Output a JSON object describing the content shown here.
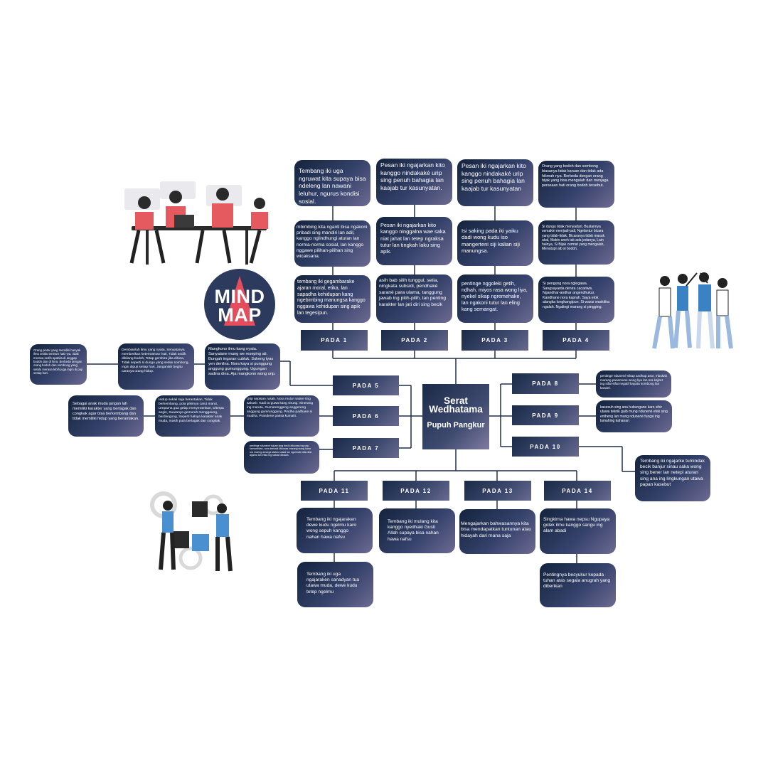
{
  "logo": {
    "line1": "MIND",
    "line2": "MAP"
  },
  "center": {
    "title": "Serat Wedhatama",
    "subtitle": "Pupuh Pangkur"
  },
  "pada": [
    "PADA 1",
    "PADA 2",
    "PADA 3",
    "PADA 4",
    "PADA 5",
    "PADA 6",
    "PADA 7",
    "PADA 8",
    "PADA 9",
    "PADA 10",
    "PADA 11",
    "PADA 12",
    "PADA 13",
    "PADA 14"
  ],
  "col1": [
    "Tembang iki uga ngruwat kita supaya bisa ndeleng lan nawani leluhur, ngurus kondisi sosial.",
    "mbimbing kita nganti bisa ngakoni pribadi sing mandiri lan adil, kanggo nglindhungi aturan lan norma-norma sosial, lan kanggo nggawe pilihan-pilihan sing wicaksana.",
    "tembang iki gegambarake ajaran moral, etika, lan sapadha kehidupan kang ngebimbing manungsa kanggo nggawa kehidupan sing apik lan tegesipun."
  ],
  "col2": [
    "Pesan iki ngajarkan kito kanggo nindakaké urip sing penuh bahagia lan kaajab tur kasunyatan.",
    "Pesan iki ngajarkan kito kanggo ninggalna wae saka niat jahat lan tetep ngraksa tutur lan tingkah laku sing apik.",
    "asih bab silih tunggul, setia, ningkata subsidi, pendhaké saranè para ulama, tanggung jawab ing pilih-pilih, lan penting karakter lan jati diri sing becik"
  ],
  "col3": [
    "Pesan iki ngajarkan kito kanggo nindakaké urip sing penuh bahagia lan kaajab tur kasunyatan",
    "Isi saking pada iki yaiku dadi wong kudu iso mangerteni siji kalian siji manungsa.",
    "pentinge nggoleki getih, ndhah, miyos rasa wong liya, nyekel sikap ngremehake, lan ngakoni tutur lan eling kang semangat."
  ],
  "col4": [
    "Orang yang bodoh dan sombong biasanya tidak karuan dan tidak ada hikmah nya. Berbeda dengan orang bijak yang bisa mengalah dan menjaga perasaan hati orang bodoh tersebut.",
    "Si dungu tidak menyadari, Bualannya semakin menjadi-jadi, Ngelantur bicara yang tidak-tidak, Bicaranya tidak masuk akal, Makin aneh tak ada jedanya, Lain halnya, Si Bijak cermat yang mengalah, Menutupi aib si bodoh.",
    "Si pengung nora nglegawa. Sangsayarda denira cacariwis. Ngandhar-andhar angendhukur. Kandhane nora kaprah. Saya elok alangka longkangipun. Si wasis waskitha ngalah. Ngalingi marang si pingging."
  ],
  "left": {
    "r5a": "Orang pintar yang memiliki banyak ilmu selalu tentram hati nya, tidak merasa sedih apabila di anggap bodoh dan di hina. Berbeda dengan orang bodoh dan sombong yang selalu merasa lebih juga ingin di puji setiap hari.",
    "r5b": "Dembianlah ilmu yang nyata, Senyatanya memberikan ketentraman hati, Tidak sedih dibilang bodoh, Tetap gembira jika dihina, Tidak seperti si dungu yang selalu sombong, Ingin dipuji setiap hari, Janganlah begitu caranya orang hidup.",
    "r5c": "Mangkono ilmu kang nyata. Sanyatane mung we reseping ati. Bungah ingaran cubluk. Sukeng tyas yen denilna. Nora kaya si punggung anggung gumunggung. Ugungan sadina dina. Aja mangkono wong urip.",
    "r6a": "Sebagai anak muda jangan lah memiliki karakter yang berlagak dan congkak agar bisa berkembang dan tidak memiliki hidup yang berantakan.",
    "r6b": "Hidup sekali saja berantakan, Tidak berkembang, pola pikirnya carut marut, Umpama goa gelap menyeramkan, Diterpa angin, Suaranya gemuruh menggaung, berdengung, Seperti halnya karakter anak muda, masih pula berlagak dan congkak.",
    "r6c": "Urip sepisan rusak. Nora mulur nalare ting saluwir. Kadi ta guwa kang sirung. Sinerang ing maruta. Gumarenggeng anggereng anggung gumrunggung. Pindha padhane si mudha. Prandene paksa kumaki.",
    "r7": "pentinge ndunené tujuan sing becik dikuwas ing urip, kamardikan, nora kemadi dikuwas marang wong kana ora maeng amarga status sosial lan ngurmati nilai-nilai agama lan etika ing sakaw dikawa."
  },
  "right": {
    "r8": "pentinge ndunené sikap andhap asor, mbukak marang panemune wong liya lan ora kejiret ing sifat-sifat negatif kayata sombong lan kandel.",
    "r9": "kasesuh sing ana hubungane karo sihir utawa teknik gaib mung ndunené efek sing entheng lan mung ndunené fungsi ing lumahing kahanan",
    "r10": "Tembang iki ngajarke tumindak becik banjur sinau saka wong sing bener lan netepi aturan sing ana ing lingkungan utawa papan kasebut"
  },
  "bottom": {
    "p11a": "Tembang iki ngajaraken dewe kudu ngelmu karo wong sepuh kanggo nahan hawa nafsu",
    "p11b": "Tembang iki uga ngajaraken sanadyan tua utawa muda, dewe kudu tetep ngelmu",
    "p12": "Tembang iki mulang kita kanggo nyedhaki Gusti Allah supaya bisa nahan hawa nafsu",
    "p13": "Mengajarkan bahwasannya kita bisa mendapatkan tuntunan atau hidayah dari mana saja",
    "p14a": "Singkirna hawa nepsu Ngupaya golek ilmu kanggo sangu ing alam abadi",
    "p14b": "Pentingnya besyukur kepada tuhan atas segala anugrah yang diberikan"
  },
  "colors": {
    "card_dark": "#14233d",
    "card_light": "#6d6a92",
    "accent_red": "#e44d5c",
    "line": "#1e2d4a"
  }
}
